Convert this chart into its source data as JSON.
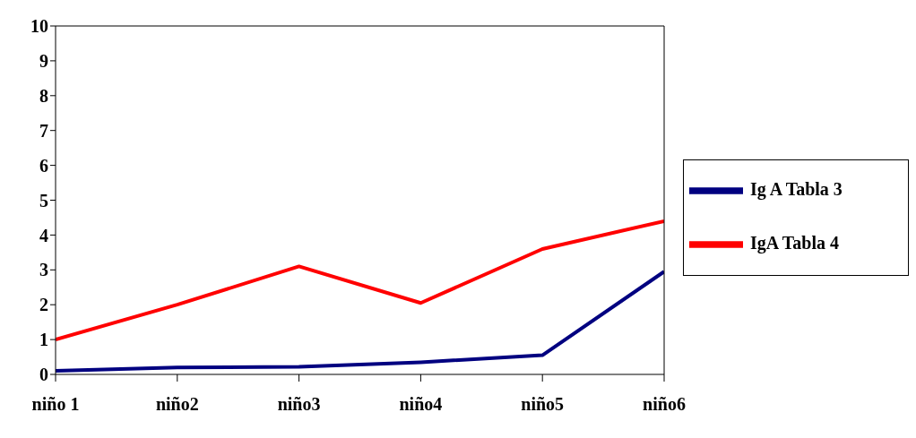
{
  "chart_data": {
    "type": "line",
    "categories": [
      "niño 1",
      "niño2",
      "niño3",
      "niño4",
      "niño5",
      "niño6"
    ],
    "series": [
      {
        "name": "Ig A Tabla 3",
        "color": "#000080",
        "values": [
          0.1,
          0.2,
          0.22,
          0.35,
          0.55,
          2.95
        ]
      },
      {
        "name": "IgA Tabla 4",
        "color": "#ff0000",
        "values": [
          1,
          2,
          3.1,
          2.05,
          3.6,
          4.4
        ]
      }
    ],
    "ylim": [
      0,
      10
    ],
    "yticks": [
      0,
      1,
      2,
      3,
      4,
      5,
      6,
      7,
      8,
      9,
      10
    ],
    "grid": false,
    "legend": "right",
    "marker": "none",
    "line_style": "solid"
  }
}
